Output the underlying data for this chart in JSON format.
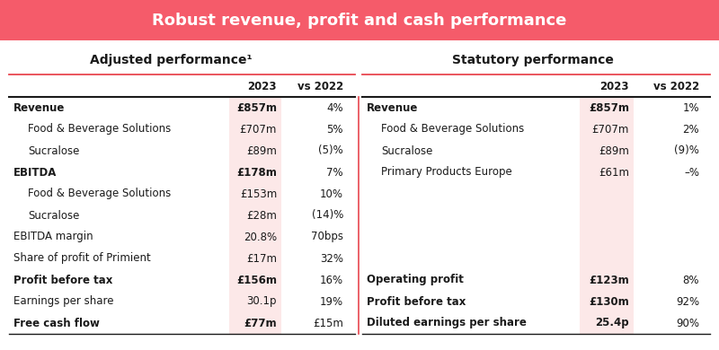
{
  "title": "Robust revenue, profit and cash performance",
  "title_bg": "#f55b6a",
  "title_color": "#ffffff",
  "section_header_left": "Adjusted performance¹",
  "section_header_right": "Statutory performance",
  "highlight_col_bg": "#fce8e8",
  "outer_bg": "#ffffff",
  "text_color": "#1a1a1a",
  "red_line": "#e8474f",
  "left_rows": [
    {
      "label": "Revenue",
      "val": "£857m",
      "vs": "4%",
      "bold": true,
      "indent": false
    },
    {
      "label": "Food & Beverage Solutions",
      "val": "£707m",
      "vs": "5%",
      "bold": false,
      "indent": true
    },
    {
      "label": "Sucralose",
      "val": "£89m",
      "vs": "(5)%",
      "bold": false,
      "indent": true
    },
    {
      "label": "EBITDA",
      "val": "£178m",
      "vs": "7%",
      "bold": true,
      "indent": false
    },
    {
      "label": "Food & Beverage Solutions",
      "val": "£153m",
      "vs": "10%",
      "bold": false,
      "indent": true
    },
    {
      "label": "Sucralose",
      "val": "£28m",
      "vs": "(14)%",
      "bold": false,
      "indent": true
    },
    {
      "label": "EBITDA margin",
      "val": "20.8%",
      "vs": "70bps",
      "bold": false,
      "indent": false
    },
    {
      "label": "Share of profit of Primient",
      "val": "£17m",
      "vs": "32%",
      "bold": false,
      "indent": false
    },
    {
      "label": "Profit before tax",
      "val": "£156m",
      "vs": "16%",
      "bold": true,
      "indent": false
    },
    {
      "label": "Earnings per share",
      "val": "30.1p",
      "vs": "19%",
      "bold": false,
      "indent": false
    },
    {
      "label": "Free cash flow",
      "val": "£77m",
      "vs": "£15m",
      "bold": true,
      "indent": false
    }
  ],
  "right_rows": [
    {
      "label": "Revenue",
      "val": "£857m",
      "vs": "1%",
      "bold": true,
      "indent": false
    },
    {
      "label": "Food & Beverage Solutions",
      "val": "£707m",
      "vs": "2%",
      "bold": false,
      "indent": true
    },
    {
      "label": "Sucralose",
      "val": "£89m",
      "vs": "(9)%",
      "bold": false,
      "indent": true
    },
    {
      "label": "Primary Products Europe",
      "val": "£61m",
      "vs": "–%",
      "bold": false,
      "indent": true
    },
    {
      "label": "",
      "val": "",
      "vs": "",
      "bold": false,
      "indent": false
    },
    {
      "label": "",
      "val": "",
      "vs": "",
      "bold": false,
      "indent": false
    },
    {
      "label": "",
      "val": "",
      "vs": "",
      "bold": false,
      "indent": false
    },
    {
      "label": "",
      "val": "",
      "vs": "",
      "bold": false,
      "indent": false
    },
    {
      "label": "Operating profit",
      "val": "£123m",
      "vs": "8%",
      "bold": true,
      "indent": false
    },
    {
      "label": "Profit before tax",
      "val": "£130m",
      "vs": "92%",
      "bold": true,
      "indent": false
    },
    {
      "label": "Diluted earnings per share",
      "val": "25.4p",
      "vs": "90%",
      "bold": true,
      "indent": false
    }
  ]
}
